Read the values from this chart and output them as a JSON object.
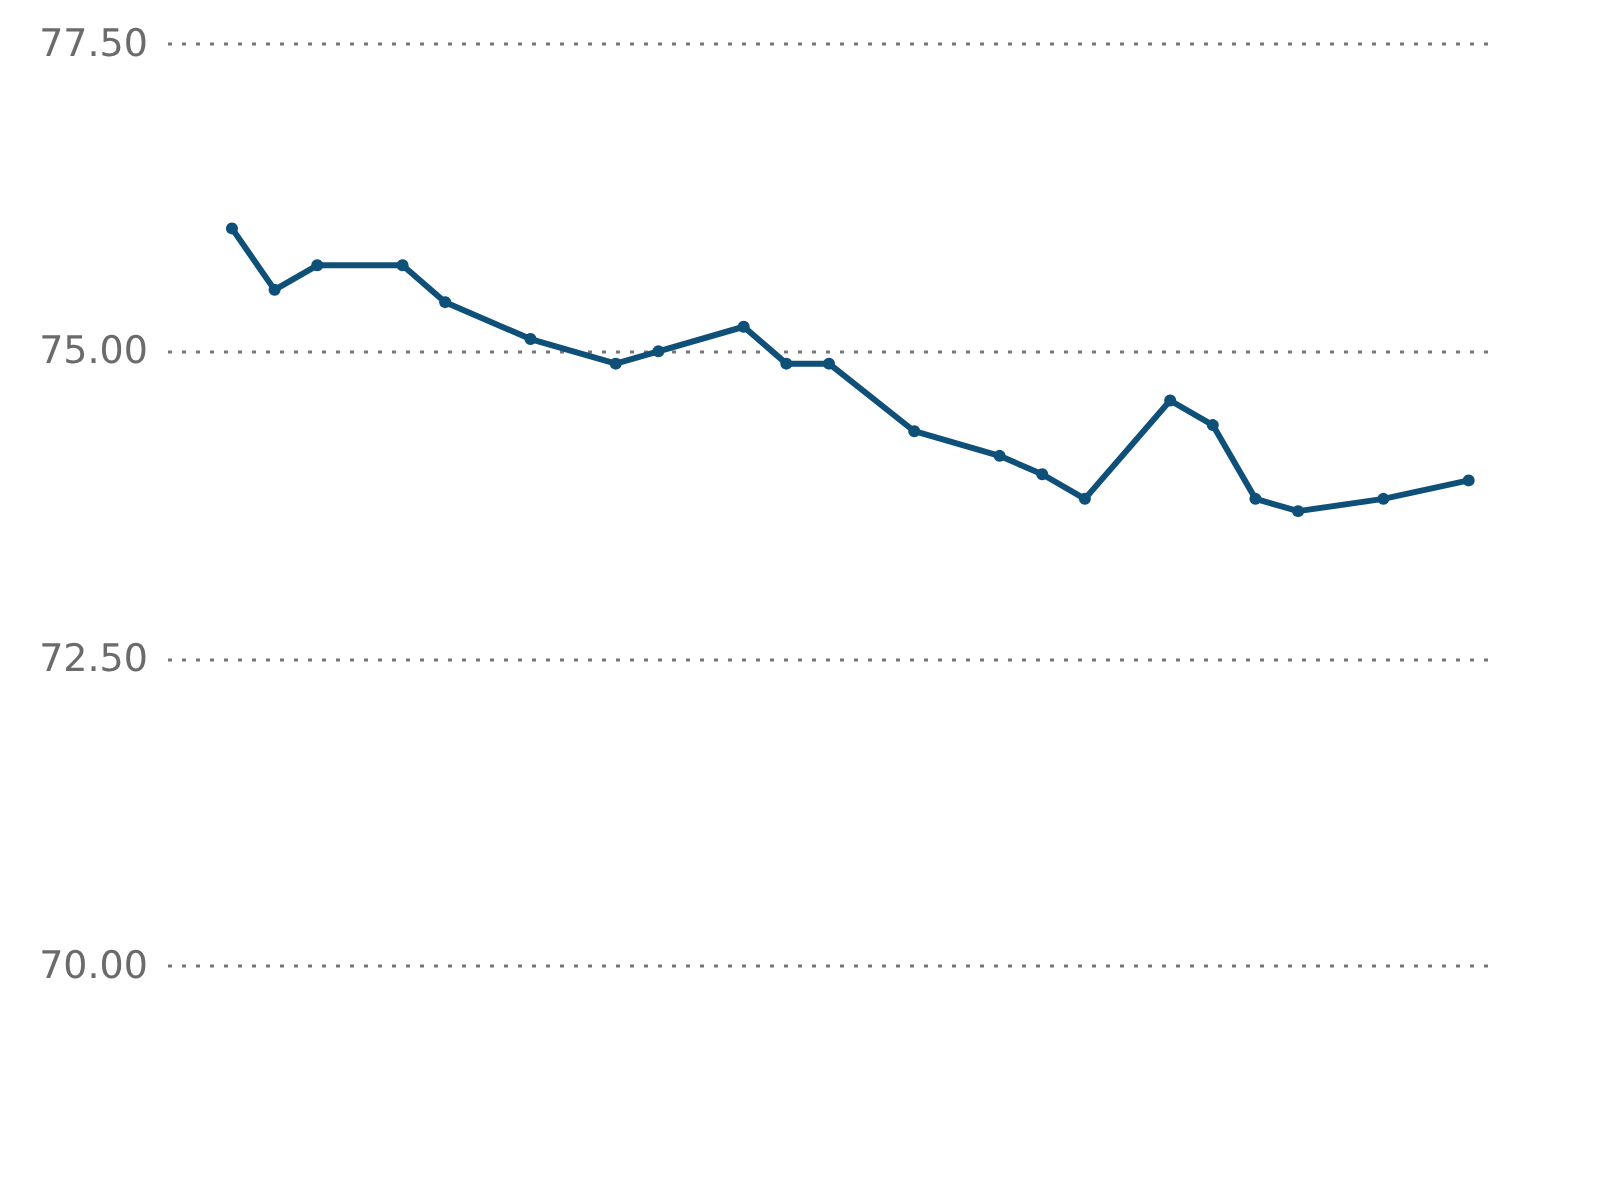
{
  "chart_data": {
    "type": "line",
    "categories": [
      null,
      null,
      null,
      null,
      null,
      null,
      null,
      null,
      null,
      null,
      null,
      null,
      null,
      null,
      null,
      null,
      null,
      null,
      null,
      null,
      null,
      null,
      null,
      null,
      null,
      null,
      null,
      null,
      null,
      null,
      null
    ],
    "series": [
      {
        "color": "#0f5079",
        "values": [
          null,
          76.0,
          75.5,
          75.7,
          null,
          75.7,
          75.4,
          null,
          75.1,
          null,
          74.9,
          75.0,
          null,
          75.2,
          74.9,
          74.9,
          null,
          74.35,
          null,
          74.15,
          74.0,
          73.8,
          null,
          74.6,
          74.4,
          73.8,
          73.7,
          null,
          73.8,
          null,
          73.95
        ]
      }
    ],
    "ylim": [
      70,
      77.5
    ],
    "yticks": [
      {
        "value": 70,
        "label": "70.00"
      },
      {
        "value": 72.5,
        "label": "72.50"
      },
      {
        "value": 75,
        "label": "75.00"
      },
      {
        "value": 77.5,
        "label": "77.50"
      }
    ],
    "grid": "y",
    "tick_labels": "y",
    "marker": "circle",
    "line_style": "solid"
  }
}
